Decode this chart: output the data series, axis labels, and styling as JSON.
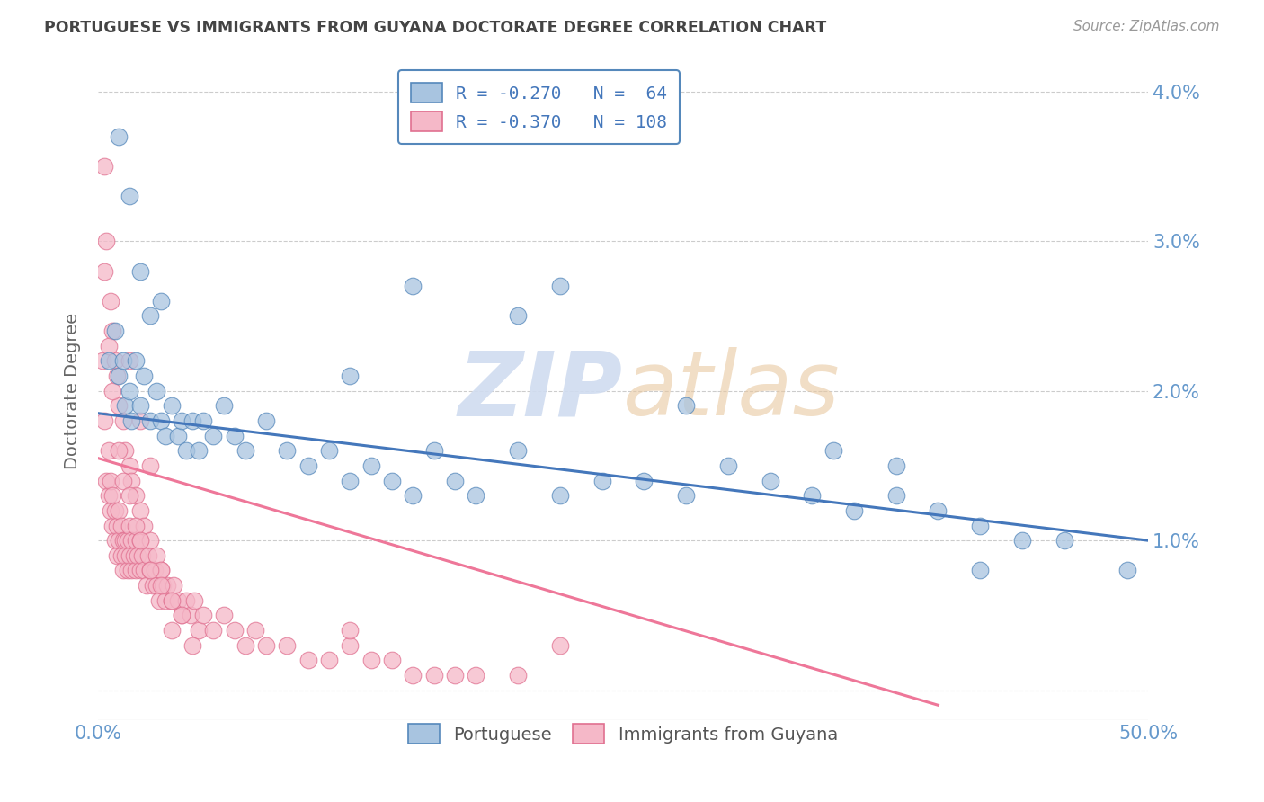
{
  "title": "PORTUGUESE VS IMMIGRANTS FROM GUYANA DOCTORATE DEGREE CORRELATION CHART",
  "source": "Source: ZipAtlas.com",
  "ylabel": "Doctorate Degree",
  "xlim": [
    0.0,
    0.5
  ],
  "ylim": [
    -0.002,
    0.042
  ],
  "ytick_vals": [
    0.0,
    0.01,
    0.02,
    0.03,
    0.04
  ],
  "ytick_labels": [
    "",
    "1.0%",
    "2.0%",
    "3.0%",
    "4.0%"
  ],
  "legend_blue_r": "R = -0.270",
  "legend_blue_n": "N =  64",
  "legend_pink_r": "R = -0.370",
  "legend_pink_n": "N = 108",
  "blue_scatter_color": "#A8C4E0",
  "blue_edge_color": "#5588BB",
  "pink_scatter_color": "#F5B8C8",
  "pink_edge_color": "#E07090",
  "blue_line_color": "#4477BB",
  "pink_line_color": "#EE7799",
  "watermark_color": "#D0DCF0",
  "background_color": "#FFFFFF",
  "grid_color": "#CCCCCC",
  "axis_label_color": "#6699CC",
  "title_color": "#444444",
  "blue_trend_x0": 0.0,
  "blue_trend_y0": 0.0185,
  "blue_trend_x1": 0.5,
  "blue_trend_y1": 0.01,
  "pink_trend_x0": 0.0,
  "pink_trend_y0": 0.0155,
  "pink_trend_x1": 0.4,
  "pink_trend_y1": -0.001,
  "blue_x": [
    0.005,
    0.008,
    0.01,
    0.012,
    0.013,
    0.015,
    0.016,
    0.018,
    0.02,
    0.022,
    0.025,
    0.028,
    0.03,
    0.032,
    0.035,
    0.038,
    0.04,
    0.042,
    0.045,
    0.048,
    0.05,
    0.055,
    0.06,
    0.065,
    0.07,
    0.08,
    0.09,
    0.1,
    0.11,
    0.12,
    0.13,
    0.14,
    0.15,
    0.16,
    0.17,
    0.18,
    0.2,
    0.22,
    0.24,
    0.26,
    0.28,
    0.3,
    0.32,
    0.34,
    0.36,
    0.38,
    0.4,
    0.42,
    0.44,
    0.46,
    0.49,
    0.01,
    0.015,
    0.02,
    0.025,
    0.03,
    0.2,
    0.22,
    0.35,
    0.38,
    0.12,
    0.15,
    0.28,
    0.42
  ],
  "blue_y": [
    0.022,
    0.024,
    0.021,
    0.022,
    0.019,
    0.02,
    0.018,
    0.022,
    0.019,
    0.021,
    0.018,
    0.02,
    0.018,
    0.017,
    0.019,
    0.017,
    0.018,
    0.016,
    0.018,
    0.016,
    0.018,
    0.017,
    0.019,
    0.017,
    0.016,
    0.018,
    0.016,
    0.015,
    0.016,
    0.014,
    0.015,
    0.014,
    0.013,
    0.016,
    0.014,
    0.013,
    0.016,
    0.013,
    0.014,
    0.014,
    0.013,
    0.015,
    0.014,
    0.013,
    0.012,
    0.013,
    0.012,
    0.011,
    0.01,
    0.01,
    0.008,
    0.037,
    0.033,
    0.028,
    0.025,
    0.026,
    0.025,
    0.027,
    0.016,
    0.015,
    0.021,
    0.027,
    0.019,
    0.008
  ],
  "pink_x": [
    0.002,
    0.003,
    0.004,
    0.005,
    0.005,
    0.006,
    0.006,
    0.007,
    0.007,
    0.008,
    0.008,
    0.009,
    0.009,
    0.01,
    0.01,
    0.011,
    0.011,
    0.012,
    0.012,
    0.013,
    0.013,
    0.014,
    0.014,
    0.015,
    0.015,
    0.016,
    0.016,
    0.017,
    0.018,
    0.018,
    0.019,
    0.02,
    0.02,
    0.021,
    0.022,
    0.023,
    0.024,
    0.025,
    0.026,
    0.027,
    0.028,
    0.029,
    0.03,
    0.031,
    0.032,
    0.033,
    0.035,
    0.036,
    0.038,
    0.04,
    0.042,
    0.044,
    0.046,
    0.048,
    0.05,
    0.055,
    0.06,
    0.065,
    0.07,
    0.075,
    0.08,
    0.09,
    0.1,
    0.11,
    0.12,
    0.13,
    0.14,
    0.15,
    0.16,
    0.17,
    0.18,
    0.2,
    0.003,
    0.004,
    0.006,
    0.007,
    0.008,
    0.009,
    0.01,
    0.012,
    0.013,
    0.015,
    0.016,
    0.018,
    0.02,
    0.022,
    0.025,
    0.028,
    0.03,
    0.035,
    0.04,
    0.045,
    0.003,
    0.005,
    0.007,
    0.01,
    0.012,
    0.015,
    0.018,
    0.02,
    0.025,
    0.03,
    0.035,
    0.015,
    0.02,
    0.025,
    0.12,
    0.22
  ],
  "pink_y": [
    0.022,
    0.018,
    0.014,
    0.016,
    0.013,
    0.014,
    0.012,
    0.013,
    0.011,
    0.012,
    0.01,
    0.011,
    0.009,
    0.012,
    0.01,
    0.011,
    0.009,
    0.01,
    0.008,
    0.01,
    0.009,
    0.01,
    0.008,
    0.009,
    0.011,
    0.008,
    0.01,
    0.009,
    0.008,
    0.01,
    0.009,
    0.008,
    0.01,
    0.009,
    0.008,
    0.007,
    0.009,
    0.008,
    0.007,
    0.008,
    0.007,
    0.006,
    0.008,
    0.007,
    0.006,
    0.007,
    0.006,
    0.007,
    0.006,
    0.005,
    0.006,
    0.005,
    0.006,
    0.004,
    0.005,
    0.004,
    0.005,
    0.004,
    0.003,
    0.004,
    0.003,
    0.003,
    0.002,
    0.002,
    0.003,
    0.002,
    0.002,
    0.001,
    0.001,
    0.001,
    0.001,
    0.001,
    0.035,
    0.03,
    0.026,
    0.024,
    0.022,
    0.021,
    0.019,
    0.018,
    0.016,
    0.015,
    0.014,
    0.013,
    0.012,
    0.011,
    0.01,
    0.009,
    0.008,
    0.006,
    0.005,
    0.003,
    0.028,
    0.023,
    0.02,
    0.016,
    0.014,
    0.013,
    0.011,
    0.01,
    0.008,
    0.007,
    0.004,
    0.022,
    0.018,
    0.015,
    0.004,
    0.003
  ]
}
